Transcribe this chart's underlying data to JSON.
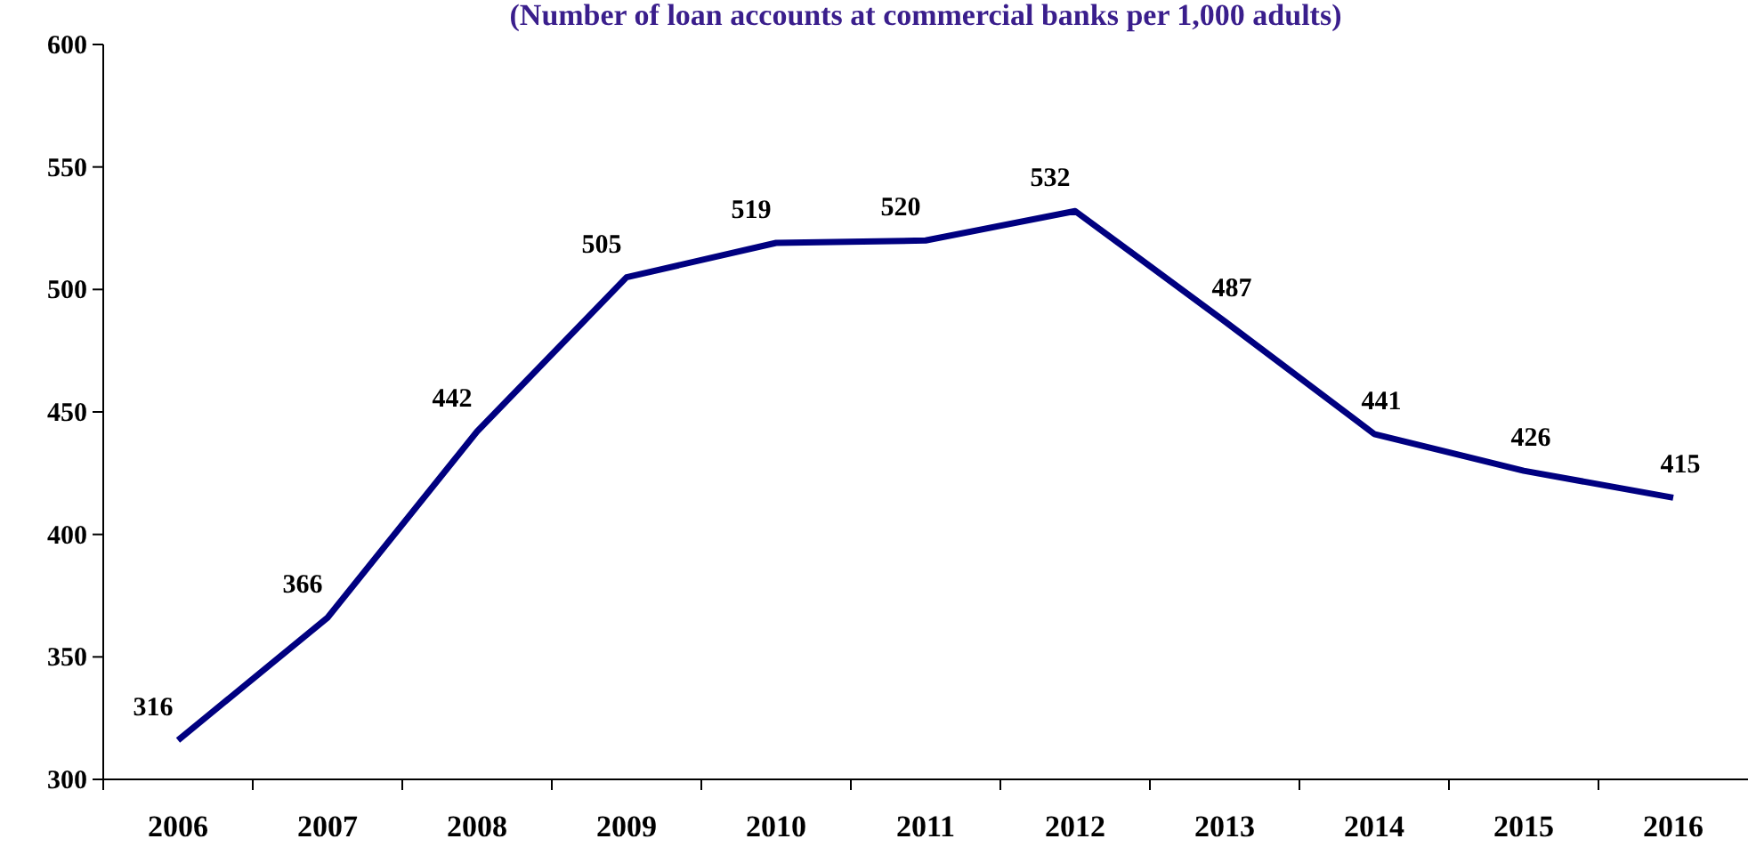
{
  "chart_data": {
    "type": "line",
    "title": "(Number of loan accounts at commercial banks per 1,000 adults)",
    "categories": [
      "2006",
      "2007",
      "2008",
      "2009",
      "2010",
      "2011",
      "2012",
      "2013",
      "2014",
      "2015",
      "2016"
    ],
    "series": [
      {
        "color": "#000080",
        "values": [
          316,
          366,
          442,
          505,
          519,
          520,
          532,
          487,
          441,
          426,
          415
        ]
      }
    ],
    "ylim": [
      300,
      600
    ],
    "yticks": [
      300,
      350,
      400,
      450,
      500,
      550,
      600
    ],
    "data_labels": true,
    "grid": false,
    "marker": "none",
    "line_style": "solid"
  }
}
